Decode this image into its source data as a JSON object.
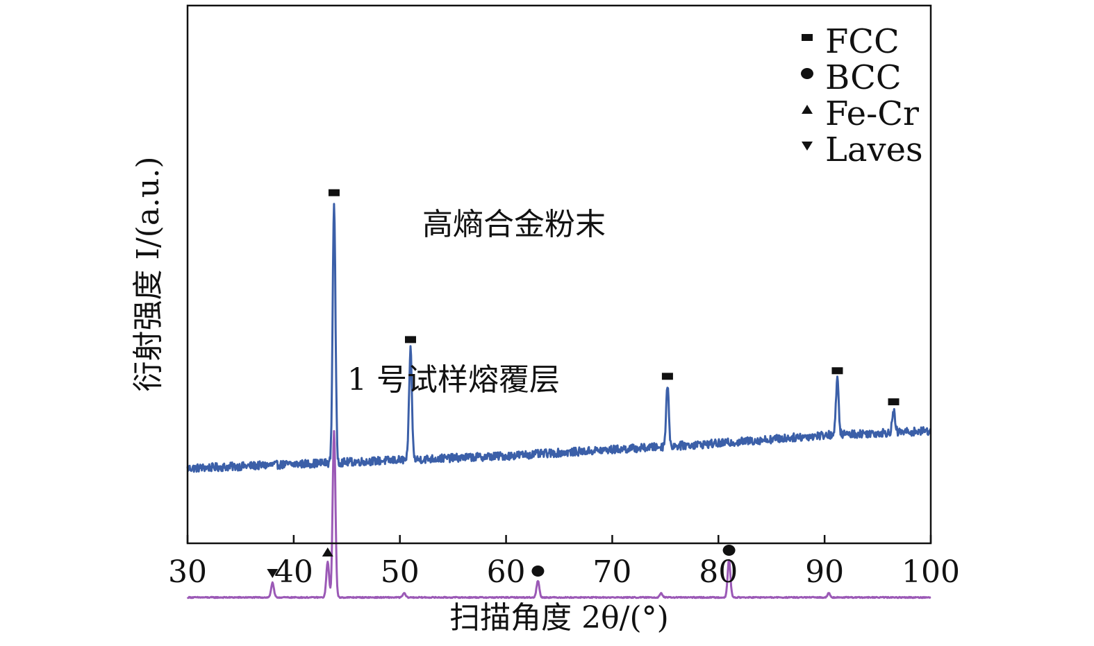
{
  "chart_data": {
    "type": "line",
    "xlabel": "扫描角度 2θ/(°)",
    "ylabel": "衍射强度 I/(a.u.)",
    "xlim": [
      30,
      100
    ],
    "xticks": [
      30,
      40,
      50,
      60,
      70,
      80,
      90,
      100
    ],
    "xtick_labels": [
      "30",
      "40",
      "50",
      "60",
      "70",
      "80",
      "90",
      "100"
    ],
    "yticks_shown": false,
    "grid": false,
    "legend_position": "top-right",
    "legend": [
      {
        "label": "FCC",
        "marker": "square"
      },
      {
        "label": "BCC",
        "marker": "circle"
      },
      {
        "label": "Fe-Cr",
        "marker": "triangle-up"
      },
      {
        "label": "Laves",
        "marker": "triangle-down"
      }
    ],
    "series": [
      {
        "name": "高熵合金粉末",
        "color": "#3b5fa8",
        "baseline": [
          [
            30,
            10
          ],
          [
            40,
            12
          ],
          [
            50,
            14
          ],
          [
            60,
            16
          ],
          [
            70,
            19
          ],
          [
            80,
            22
          ],
          [
            90,
            26
          ],
          [
            100,
            28
          ]
        ],
        "peaks": [
          {
            "x": 43.8,
            "height": 125,
            "marker": "square"
          },
          {
            "x": 51.0,
            "height": 53,
            "marker": "square"
          },
          {
            "x": 75.2,
            "height": 29,
            "marker": "square"
          },
          {
            "x": 91.2,
            "height": 26,
            "marker": "square"
          },
          {
            "x": 96.5,
            "height": 10,
            "marker": "square"
          }
        ]
      },
      {
        "name": "1 号试样熔覆层",
        "color": "#9b59b6",
        "baseline": [
          [
            30,
            -52
          ],
          [
            100,
            -52
          ]
        ],
        "peaks": [
          {
            "x": 38.0,
            "height": 7,
            "marker": "triangle-down"
          },
          {
            "x": 43.2,
            "height": 17,
            "marker": "triangle-up"
          },
          {
            "x": 43.8,
            "height": 80,
            "marker": null
          },
          {
            "x": 50.4,
            "height": 2,
            "marker": null
          },
          {
            "x": 63.0,
            "height": 8,
            "marker": "circle"
          },
          {
            "x": 74.6,
            "height": 2,
            "marker": null
          },
          {
            "x": 81.0,
            "height": 18,
            "marker": "circle"
          },
          {
            "x": 90.4,
            "height": 2,
            "marker": null
          }
        ]
      }
    ]
  }
}
